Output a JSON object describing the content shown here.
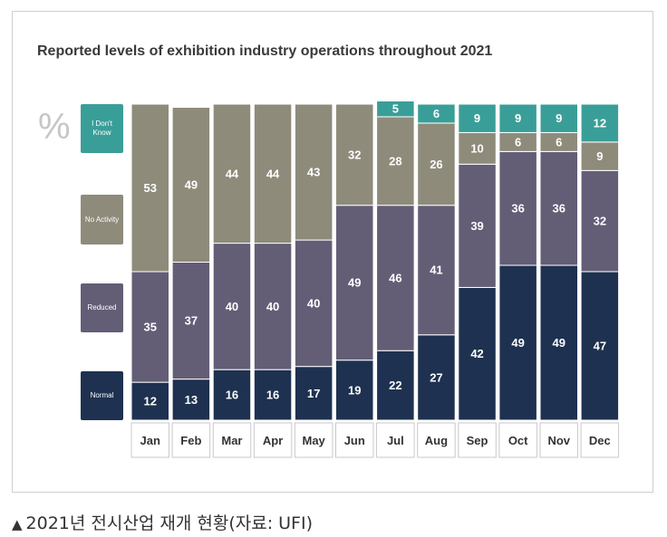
{
  "chart_data": {
    "type": "bar",
    "stacked": true,
    "title": "Reported levels of exhibition industry operations throughout 2021",
    "ylabel": "%",
    "ylim": [
      0,
      100
    ],
    "categories": [
      "Jan",
      "Feb",
      "Mar",
      "Apr",
      "May",
      "Jun",
      "Jul",
      "Aug",
      "Sep",
      "Oct",
      "Nov",
      "Dec"
    ],
    "series": [
      {
        "name": "Normal",
        "color": "#1e3150",
        "values": [
          12,
          13,
          16,
          16,
          17,
          19,
          22,
          27,
          42,
          49,
          49,
          47
        ]
      },
      {
        "name": "Reduced",
        "color": "#635e76",
        "values": [
          35,
          37,
          40,
          40,
          40,
          49,
          46,
          41,
          39,
          36,
          36,
          32
        ]
      },
      {
        "name": "No Activity",
        "color": "#8e8b7b",
        "values": [
          53,
          49,
          44,
          44,
          43,
          32,
          28,
          26,
          10,
          6,
          6,
          9
        ]
      },
      {
        "name": "I Don't Know",
        "color": "#3a9e98",
        "values": [
          0,
          0,
          0,
          0,
          0,
          0,
          5,
          6,
          9,
          9,
          9,
          12
        ]
      }
    ],
    "grid": false,
    "legend_placement": "left"
  },
  "caption": {
    "marker": "▲",
    "text": "2021년 전시산업 재개 현황(자료: UFI)"
  }
}
